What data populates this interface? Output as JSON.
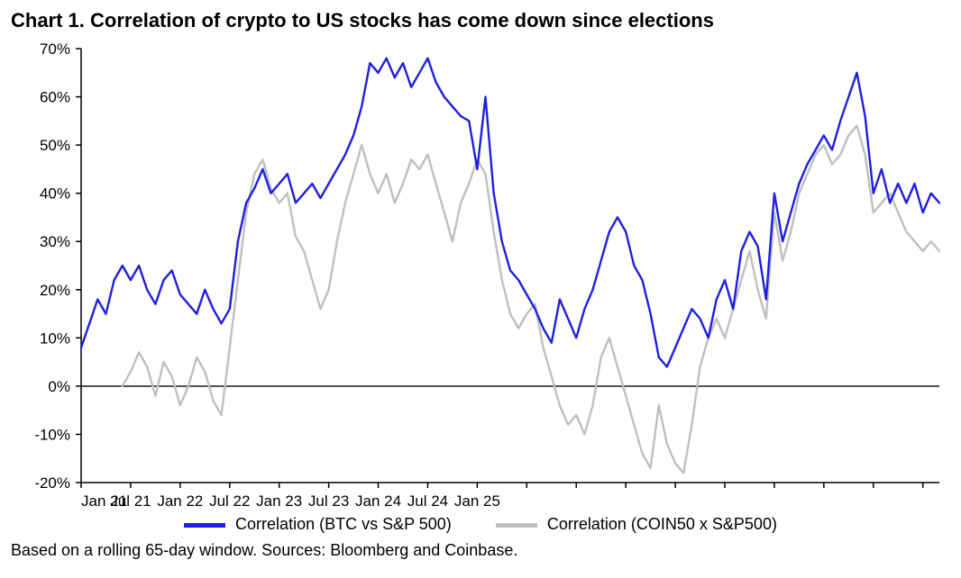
{
  "title": "Chart 1. Correlation of crypto to US stocks has come down since elections",
  "footnote": "Based on a rolling 65-day window. Sources: Bloomberg and Coinbase.",
  "chart": {
    "type": "line",
    "background_color": "#ffffff",
    "axis_color": "#000000",
    "axis_stroke_width": 1.5,
    "tick_length": 6,
    "y": {
      "min": -20,
      "max": 70,
      "step": 10,
      "labels": [
        "70%",
        "60%",
        "50%",
        "40%",
        "30%",
        "20%",
        "10%",
        "0%",
        "-10%",
        "-20%"
      ],
      "label_fontsize": 17,
      "label_color": "#000000"
    },
    "x": {
      "min": 0,
      "max": 104,
      "major_step": 12,
      "minor_step": 6,
      "labels": [
        "Jan 21",
        "Jul 21",
        "Jan 22",
        "Jul 22",
        "Jan 23",
        "Jul 23",
        "Jan 24",
        "Jul 24",
        "Jan 25"
      ],
      "label_fontsize": 17,
      "label_color": "#000000"
    },
    "zero_line_color": "#000000",
    "zero_line_width": 1.4,
    "series": [
      {
        "name": "Correlation (BTC vs S&P 500)",
        "color": "#1f1fe0",
        "stroke_width": 2.4,
        "data": [
          [
            0,
            8
          ],
          [
            1,
            13
          ],
          [
            2,
            18
          ],
          [
            3,
            15
          ],
          [
            4,
            22
          ],
          [
            5,
            25
          ],
          [
            6,
            22
          ],
          [
            7,
            25
          ],
          [
            8,
            20
          ],
          [
            9,
            17
          ],
          [
            10,
            22
          ],
          [
            11,
            24
          ],
          [
            12,
            19
          ],
          [
            13,
            17
          ],
          [
            14,
            15
          ],
          [
            15,
            20
          ],
          [
            16,
            16
          ],
          [
            17,
            13
          ],
          [
            18,
            16
          ],
          [
            19,
            30
          ],
          [
            20,
            38
          ],
          [
            21,
            41
          ],
          [
            22,
            45
          ],
          [
            23,
            40
          ],
          [
            24,
            42
          ],
          [
            25,
            44
          ],
          [
            26,
            38
          ],
          [
            27,
            40
          ],
          [
            28,
            42
          ],
          [
            29,
            39
          ],
          [
            30,
            42
          ],
          [
            31,
            45
          ],
          [
            32,
            48
          ],
          [
            33,
            52
          ],
          [
            34,
            58
          ],
          [
            35,
            67
          ],
          [
            36,
            65
          ],
          [
            37,
            68
          ],
          [
            38,
            64
          ],
          [
            39,
            67
          ],
          [
            40,
            62
          ],
          [
            41,
            65
          ],
          [
            42,
            68
          ],
          [
            43,
            63
          ],
          [
            44,
            60
          ],
          [
            45,
            58
          ],
          [
            46,
            56
          ],
          [
            47,
            55
          ],
          [
            48,
            45
          ],
          [
            49,
            60
          ],
          [
            50,
            40
          ],
          [
            51,
            30
          ],
          [
            52,
            24
          ],
          [
            53,
            22
          ],
          [
            54,
            19
          ],
          [
            55,
            16
          ],
          [
            56,
            12
          ],
          [
            57,
            9
          ],
          [
            58,
            18
          ],
          [
            59,
            14
          ],
          [
            60,
            10
          ],
          [
            61,
            16
          ],
          [
            62,
            20
          ],
          [
            63,
            26
          ],
          [
            64,
            32
          ],
          [
            65,
            35
          ],
          [
            66,
            32
          ],
          [
            67,
            25
          ],
          [
            68,
            22
          ],
          [
            69,
            15
          ],
          [
            70,
            6
          ],
          [
            71,
            4
          ],
          [
            72,
            8
          ],
          [
            73,
            12
          ],
          [
            74,
            16
          ],
          [
            75,
            14
          ],
          [
            76,
            10
          ],
          [
            77,
            18
          ],
          [
            78,
            22
          ],
          [
            79,
            16
          ],
          [
            80,
            28
          ],
          [
            81,
            32
          ],
          [
            82,
            29
          ],
          [
            83,
            18
          ],
          [
            84,
            40
          ],
          [
            85,
            30
          ],
          [
            86,
            36
          ],
          [
            87,
            42
          ],
          [
            88,
            46
          ],
          [
            89,
            49
          ],
          [
            90,
            52
          ],
          [
            91,
            49
          ],
          [
            92,
            55
          ],
          [
            93,
            60
          ],
          [
            94,
            65
          ],
          [
            95,
            56
          ],
          [
            96,
            40
          ],
          [
            97,
            45
          ],
          [
            98,
            38
          ],
          [
            99,
            42
          ],
          [
            100,
            38
          ],
          [
            101,
            42
          ],
          [
            102,
            36
          ],
          [
            103,
            40
          ],
          [
            104,
            38
          ]
        ]
      },
      {
        "name": "Correlation (COIN50 x S&P500)",
        "color": "#bfbfbf",
        "stroke_width": 2.4,
        "data": [
          [
            5,
            0
          ],
          [
            6,
            3
          ],
          [
            7,
            7
          ],
          [
            8,
            4
          ],
          [
            9,
            -2
          ],
          [
            10,
            5
          ],
          [
            11,
            2
          ],
          [
            12,
            -4
          ],
          [
            13,
            0
          ],
          [
            14,
            6
          ],
          [
            15,
            3
          ],
          [
            16,
            -3
          ],
          [
            17,
            -6
          ],
          [
            18,
            8
          ],
          [
            19,
            22
          ],
          [
            20,
            36
          ],
          [
            21,
            44
          ],
          [
            22,
            47
          ],
          [
            23,
            41
          ],
          [
            24,
            38
          ],
          [
            25,
            40
          ],
          [
            26,
            31
          ],
          [
            27,
            28
          ],
          [
            28,
            22
          ],
          [
            29,
            16
          ],
          [
            30,
            20
          ],
          [
            31,
            30
          ],
          [
            32,
            38
          ],
          [
            33,
            44
          ],
          [
            34,
            50
          ],
          [
            35,
            44
          ],
          [
            36,
            40
          ],
          [
            37,
            44
          ],
          [
            38,
            38
          ],
          [
            39,
            42
          ],
          [
            40,
            47
          ],
          [
            41,
            45
          ],
          [
            42,
            48
          ],
          [
            43,
            42
          ],
          [
            44,
            36
          ],
          [
            45,
            30
          ],
          [
            46,
            38
          ],
          [
            47,
            42
          ],
          [
            48,
            47
          ],
          [
            49,
            44
          ],
          [
            50,
            32
          ],
          [
            51,
            22
          ],
          [
            52,
            15
          ],
          [
            53,
            12
          ],
          [
            54,
            15
          ],
          [
            55,
            17
          ],
          [
            56,
            8
          ],
          [
            57,
            2
          ],
          [
            58,
            -4
          ],
          [
            59,
            -8
          ],
          [
            60,
            -6
          ],
          [
            61,
            -10
          ],
          [
            62,
            -4
          ],
          [
            63,
            6
          ],
          [
            64,
            10
          ],
          [
            65,
            4
          ],
          [
            66,
            -2
          ],
          [
            67,
            -8
          ],
          [
            68,
            -14
          ],
          [
            69,
            -17
          ],
          [
            70,
            -4
          ],
          [
            71,
            -12
          ],
          [
            72,
            -16
          ],
          [
            73,
            -18
          ],
          [
            74,
            -8
          ],
          [
            75,
            4
          ],
          [
            76,
            10
          ],
          [
            77,
            14
          ],
          [
            78,
            10
          ],
          [
            79,
            16
          ],
          [
            80,
            22
          ],
          [
            81,
            28
          ],
          [
            82,
            20
          ],
          [
            83,
            14
          ],
          [
            84,
            36
          ],
          [
            85,
            26
          ],
          [
            86,
            32
          ],
          [
            87,
            40
          ],
          [
            88,
            44
          ],
          [
            89,
            48
          ],
          [
            90,
            50
          ],
          [
            91,
            46
          ],
          [
            92,
            48
          ],
          [
            93,
            52
          ],
          [
            94,
            54
          ],
          [
            95,
            48
          ],
          [
            96,
            36
          ],
          [
            97,
            38
          ],
          [
            98,
            40
          ],
          [
            99,
            36
          ],
          [
            100,
            32
          ],
          [
            101,
            30
          ],
          [
            102,
            28
          ],
          [
            103,
            30
          ],
          [
            104,
            28
          ]
        ]
      }
    ],
    "legend": {
      "items": [
        {
          "label": "Correlation (BTC vs S&P 500)",
          "color": "#1f1fe0",
          "swatch_height": 5
        },
        {
          "label": "Correlation (COIN50 x S&P500)",
          "color": "#bfbfbf",
          "swatch_height": 5
        }
      ],
      "fontsize": 18
    }
  }
}
